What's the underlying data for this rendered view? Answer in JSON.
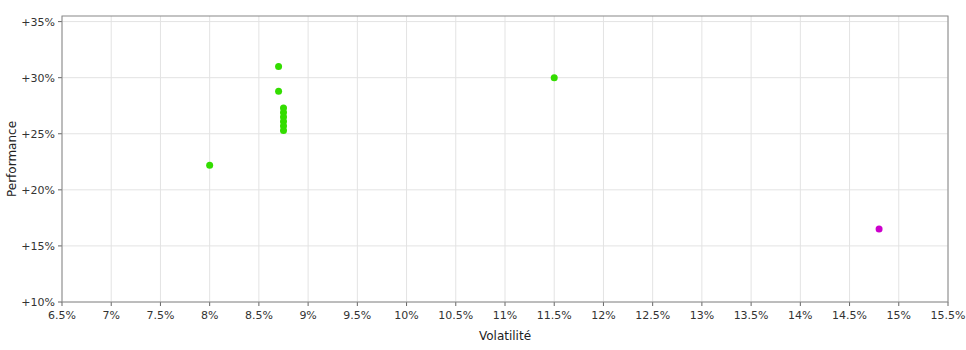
{
  "chart_data": {
    "type": "scatter",
    "xlabel": "Volatilité",
    "ylabel": "Performance",
    "xlim": [
      0.065,
      0.155
    ],
    "ylim": [
      0.1,
      0.355
    ],
    "xticks": [
      {
        "value": 0.065,
        "label": "6.5%"
      },
      {
        "value": 0.07,
        "label": "7%"
      },
      {
        "value": 0.075,
        "label": "7.5%"
      },
      {
        "value": 0.08,
        "label": "8%"
      },
      {
        "value": 0.085,
        "label": "8.5%"
      },
      {
        "value": 0.09,
        "label": "9%"
      },
      {
        "value": 0.095,
        "label": "9.5%"
      },
      {
        "value": 0.1,
        "label": "10%"
      },
      {
        "value": 0.105,
        "label": "10.5%"
      },
      {
        "value": 0.11,
        "label": "11%"
      },
      {
        "value": 0.115,
        "label": "11.5%"
      },
      {
        "value": 0.12,
        "label": "12%"
      },
      {
        "value": 0.125,
        "label": "12.5%"
      },
      {
        "value": 0.13,
        "label": "13%"
      },
      {
        "value": 0.135,
        "label": "13.5%"
      },
      {
        "value": 0.14,
        "label": "14%"
      },
      {
        "value": 0.145,
        "label": "14.5%"
      },
      {
        "value": 0.15,
        "label": "15%"
      },
      {
        "value": 0.155,
        "label": "15.5%"
      }
    ],
    "yticks": [
      {
        "value": 0.1,
        "label": "+10%"
      },
      {
        "value": 0.15,
        "label": "+15%"
      },
      {
        "value": 0.2,
        "label": "+20%"
      },
      {
        "value": 0.25,
        "label": "+25%"
      },
      {
        "value": 0.3,
        "label": "+30%"
      },
      {
        "value": 0.35,
        "label": "+35%"
      }
    ],
    "grid": true,
    "series": [
      {
        "color": "#33dd00",
        "x": [
          0.087,
          0.087,
          0.0875,
          0.0875,
          0.0875,
          0.0875,
          0.0875,
          0.0875,
          0.115,
          0.08
        ],
        "values": [
          0.31,
          0.288,
          0.273,
          0.269,
          0.265,
          0.261,
          0.257,
          0.253,
          0.3,
          0.222
        ]
      },
      {
        "color": "#cc00cc",
        "x": [
          0.148
        ],
        "values": [
          0.165
        ]
      }
    ]
  }
}
